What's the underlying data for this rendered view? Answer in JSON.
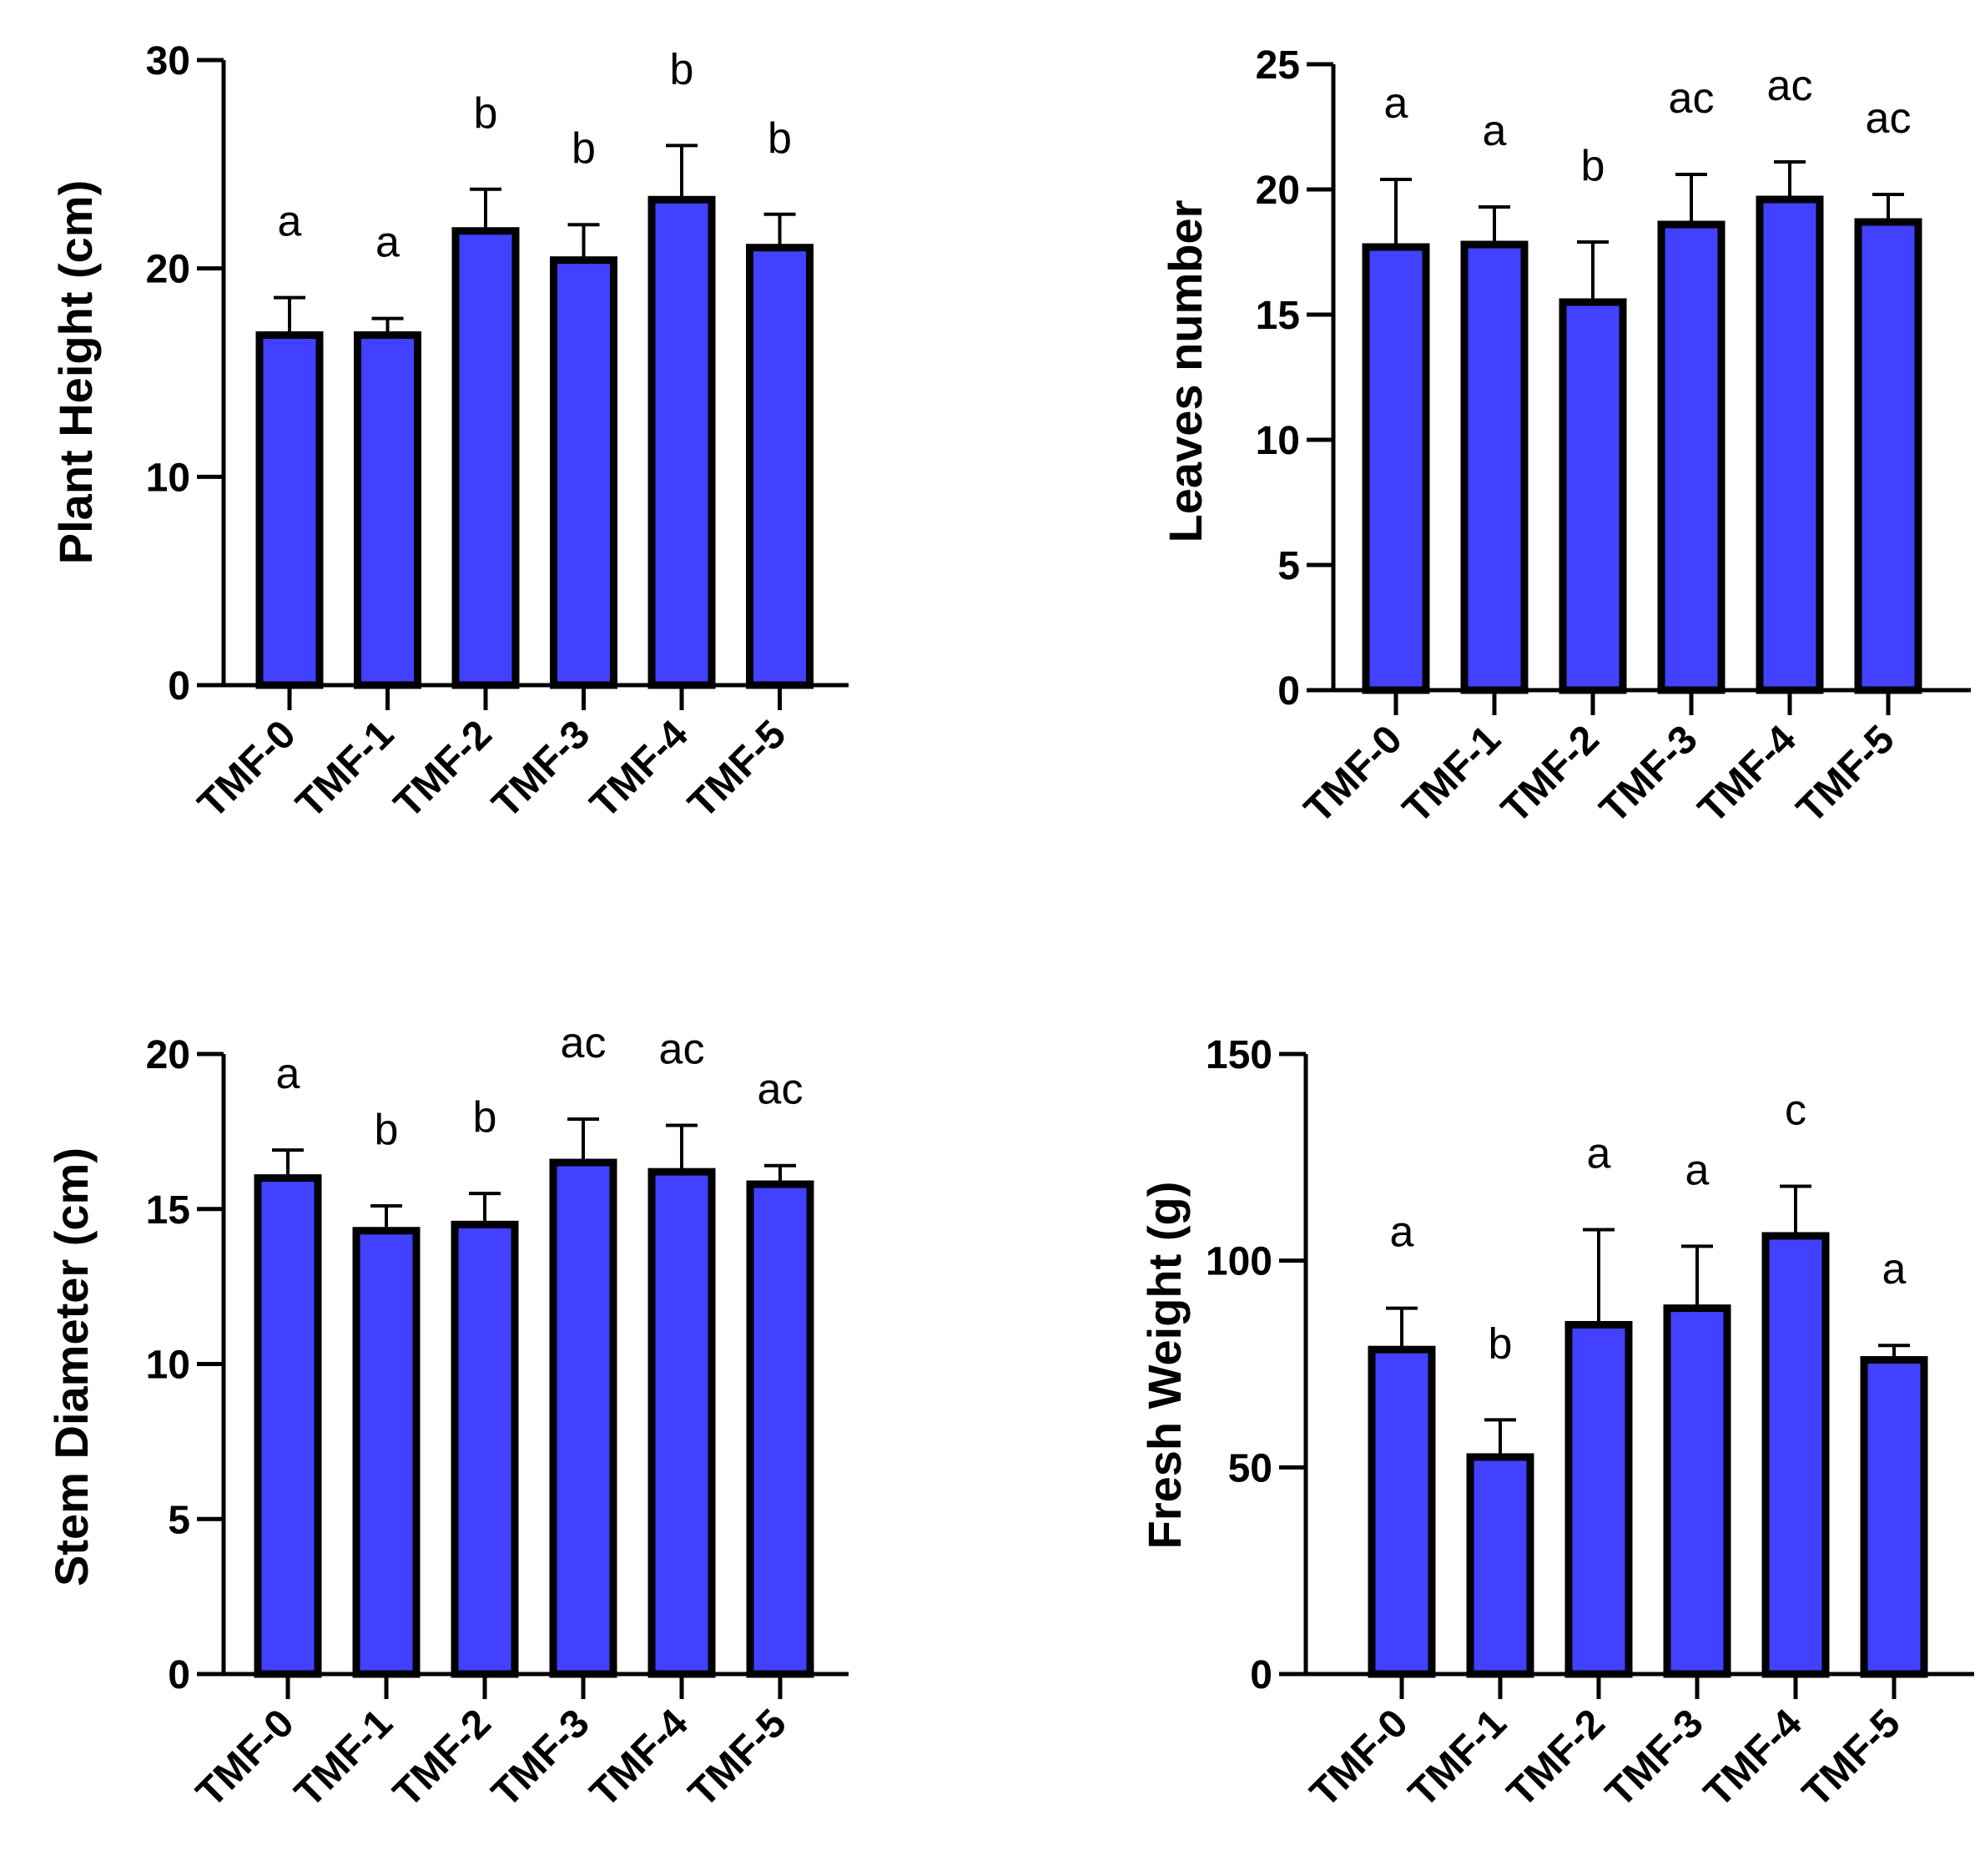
{
  "style": {
    "bar_color": "#4141FF",
    "stroke_color": "#000000"
  },
  "chart_data": [
    {
      "id": "plant-height",
      "type": "bar",
      "categories": [
        "TMF-0",
        "TMF-1",
        "TMF-2",
        "TMF-3",
        "TMF-4",
        "TMF-5"
      ],
      "values": [
        16.8,
        16.8,
        21.8,
        20.4,
        23.3,
        21.0
      ],
      "errors": [
        1.8,
        0.8,
        2.0,
        1.7,
        2.6,
        1.6
      ],
      "significance": [
        "a",
        "a",
        "b",
        "b",
        "b",
        "b"
      ],
      "ylabel": "Plant Height (cm)",
      "xlabel": "",
      "ylim": [
        0,
        30
      ],
      "yticks": [
        0,
        10,
        20,
        30
      ]
    },
    {
      "id": "leaves-number",
      "type": "bar",
      "categories": [
        "TMF-0",
        "TMF-1",
        "TMF-2",
        "TMF-3",
        "TMF-4",
        "TMF-5"
      ],
      "values": [
        17.7,
        17.8,
        15.5,
        18.6,
        19.6,
        18.7
      ],
      "errors": [
        2.7,
        1.5,
        2.4,
        2.0,
        1.5,
        1.1
      ],
      "significance": [
        "a",
        "a",
        "b",
        "ac",
        "ac",
        "ac"
      ],
      "ylabel": "Leaves number",
      "xlabel": "",
      "ylim": [
        0,
        25
      ],
      "yticks": [
        0,
        5,
        10,
        15,
        20,
        25
      ]
    },
    {
      "id": "stem-diameter",
      "type": "bar",
      "categories": [
        "TMF-0",
        "TMF-1",
        "TMF-2",
        "TMF-3",
        "TMF-4",
        "TMF-5"
      ],
      "values": [
        16.0,
        14.3,
        14.5,
        16.5,
        16.2,
        15.8
      ],
      "errors": [
        0.9,
        0.8,
        1.0,
        1.4,
        1.5,
        0.6
      ],
      "significance": [
        "a",
        "b",
        "b",
        "ac",
        "ac",
        "ac"
      ],
      "ylabel": "Stem Diameter (cm)",
      "xlabel": "",
      "ylim": [
        0,
        20
      ],
      "yticks": [
        0,
        5,
        10,
        15,
        20
      ]
    },
    {
      "id": "fresh-weight",
      "type": "bar",
      "categories": [
        "TMF-0",
        "TMF-1",
        "TMF-2",
        "TMF-3",
        "TMF-4",
        "TMF-5"
      ],
      "values": [
        78.5,
        52.5,
        84.5,
        88.5,
        106.0,
        76.0
      ],
      "errors": [
        10.0,
        9.0,
        23.0,
        15.0,
        12.0,
        3.5
      ],
      "significance": [
        "a",
        "b",
        "a",
        "a",
        "c",
        "a"
      ],
      "ylabel": "Fresh Weight (g)",
      "xlabel": "",
      "ylim": [
        0,
        150
      ],
      "yticks": [
        0,
        50,
        100,
        150
      ]
    }
  ]
}
